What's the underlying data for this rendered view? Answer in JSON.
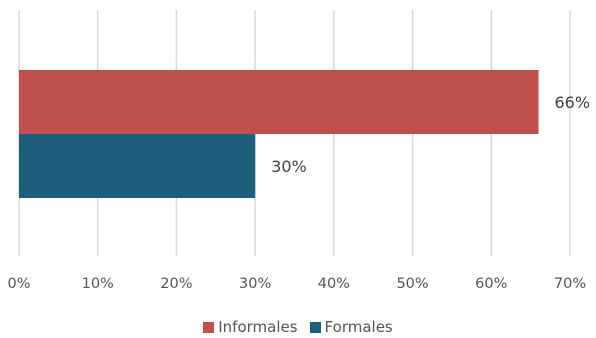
{
  "chart_data": {
    "type": "bar",
    "orientation": "horizontal",
    "categories": [
      ""
    ],
    "series": [
      {
        "name": "Informales",
        "values": [
          66
        ],
        "label": "66%",
        "color": "#C0504D"
      },
      {
        "name": "Formales",
        "values": [
          30
        ],
        "label": "30%",
        "color": "#1F5F7E"
      }
    ],
    "xlim": [
      0,
      70
    ],
    "x_ticks": [
      "0%",
      "10%",
      "20%",
      "30%",
      "40%",
      "50%",
      "60%",
      "70%"
    ],
    "grid": true,
    "legend": "bottom",
    "title": "",
    "xlabel": "",
    "ylabel": ""
  },
  "colors": {
    "grid": "#D9D9D9",
    "text": "#555555",
    "data_label": "#404040"
  }
}
